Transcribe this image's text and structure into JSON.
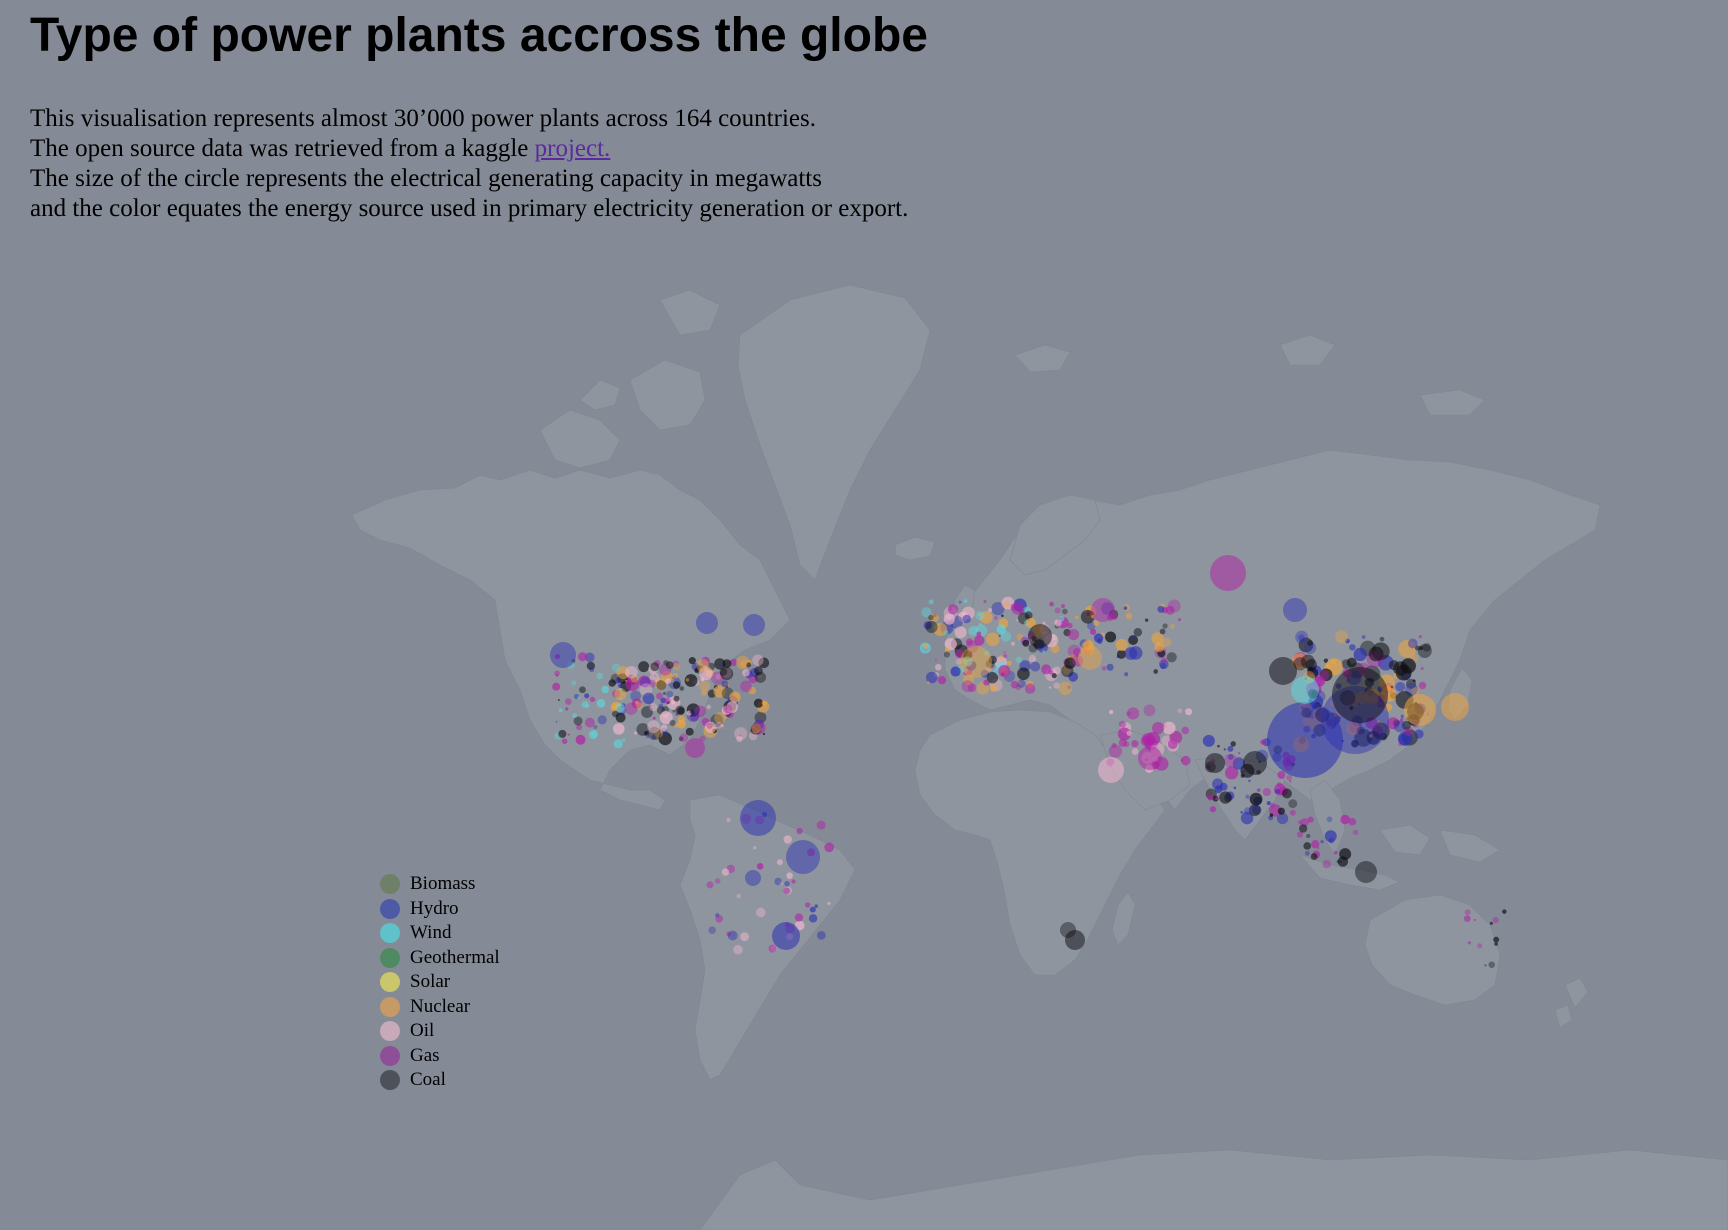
{
  "page": {
    "title": "Type of power plants accross the globe",
    "intro": {
      "line1": "This visualisation represents almost 30’000 power plants across 164 countries.",
      "line2_prefix": "The open source data was retrieved from a kaggle ",
      "line2_link": "project.",
      "line3": "The size of the circle represents the electrical generating capacity in megawatts",
      "line4": "and the color equates the energy source used in primary electricity generation or export."
    }
  },
  "colors": {
    "background": "#858b96",
    "land": "#8e959e",
    "link": "#5b2a9e"
  },
  "legend": [
    {
      "label": "Biomass",
      "color": "#6f8068"
    },
    {
      "label": "Hydro",
      "color": "#4f5aa6"
    },
    {
      "label": "Wind",
      "color": "#5fc1c9"
    },
    {
      "label": "Geothermal",
      "color": "#4f8a62"
    },
    {
      "label": "Solar",
      "color": "#c9c66c"
    },
    {
      "label": "Nuclear",
      "color": "#c69a64"
    },
    {
      "label": "Oil",
      "color": "#c7a9b9"
    },
    {
      "label": "Gas",
      "color": "#8e4f98"
    },
    {
      "label": "Coal",
      "color": "#4d5159"
    }
  ],
  "plant_colors": {
    "Hydro": "#2a2fb3",
    "Wind": "#5fd6dc",
    "Nuclear": "#f0a53c",
    "Oil": "#f2b8cf",
    "Gas": "#b020a6",
    "Coal": "#0c0c12"
  }
}
